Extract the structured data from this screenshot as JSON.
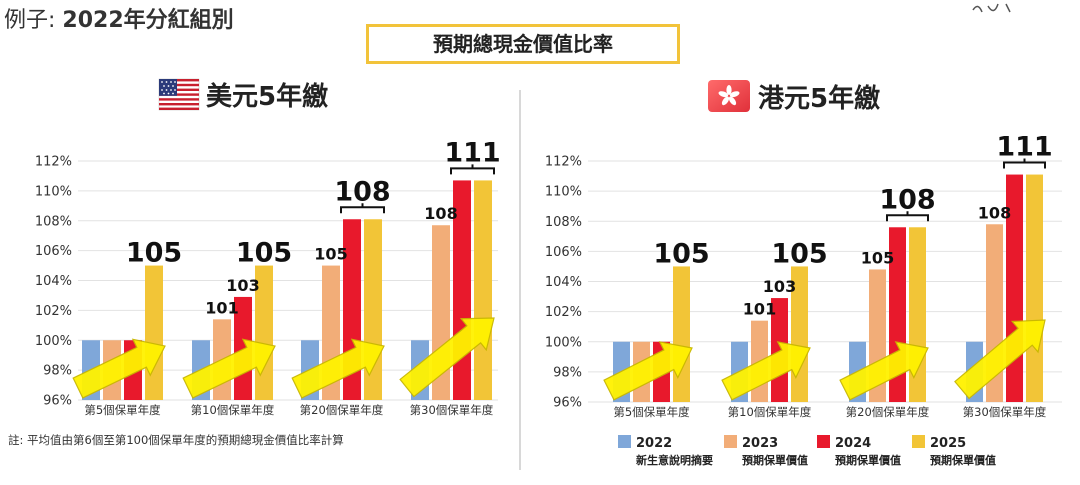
{
  "heading": {
    "prefix": "例子:",
    "main": "2022年分紅組別"
  },
  "center_title": "預期總現金價值比率",
  "note": "註: 平均值由第6個至第100個保單年度的預期總現金價值比率計算",
  "legend": [
    {
      "year": "2022",
      "desc": "新生意說明摘要",
      "color": "#7fa7d9"
    },
    {
      "year": "2023",
      "desc": "預期保單價值",
      "color": "#f2ad78"
    },
    {
      "year": "2024",
      "desc": "預期保單價值",
      "color": "#e8192c"
    },
    {
      "year": "2025",
      "desc": "預期保單價值",
      "color": "#f2c537"
    }
  ],
  "chart_data": [
    {
      "type": "bar",
      "title": "美元5年繳",
      "categories": [
        "第5個保單年度",
        "第10個保單年度",
        "第20個保單年度",
        "第30個保單年度"
      ],
      "yticks": [
        "96%",
        "98%",
        "100%",
        "102%",
        "104%",
        "106%",
        "108%",
        "110%",
        "112%"
      ],
      "ylim": [
        96,
        112
      ],
      "series": [
        {
          "name": "2022",
          "values": [
            100,
            100,
            100,
            100
          ]
        },
        {
          "name": "2023",
          "values": [
            100,
            101.4,
            105,
            107.7
          ]
        },
        {
          "name": "2024",
          "values": [
            100,
            102.9,
            108.1,
            110.7
          ]
        },
        {
          "name": "2025",
          "values": [
            105,
            105,
            108.1,
            110.7
          ]
        }
      ],
      "labels": [
        {
          "text": "105",
          "cat": 0,
          "bar": 3,
          "size": "big"
        },
        {
          "text": "101",
          "cat": 1,
          "bar": 1,
          "size": "small"
        },
        {
          "text": "103",
          "cat": 1,
          "bar": 2,
          "size": "small"
        },
        {
          "text": "105",
          "cat": 1,
          "bar": 3,
          "size": "big"
        },
        {
          "text": "105",
          "cat": 2,
          "bar": 1,
          "size": "small"
        },
        {
          "text": "108",
          "cat": 2,
          "bar": 2.5,
          "size": "big",
          "brace": true
        },
        {
          "text": "108",
          "cat": 3,
          "bar": 1,
          "size": "small"
        },
        {
          "text": "111",
          "cat": 3,
          "bar": 2.5,
          "size": "big",
          "brace": true
        }
      ]
    },
    {
      "type": "bar",
      "title": "港元5年繳",
      "categories": [
        "第5個保單年度",
        "第10個保單年度",
        "第20個保單年度",
        "第30個保單年度"
      ],
      "yticks": [
        "96%",
        "98%",
        "100%",
        "102%",
        "104%",
        "106%",
        "108%",
        "110%",
        "112%"
      ],
      "ylim": [
        96,
        112
      ],
      "series": [
        {
          "name": "2022",
          "values": [
            100,
            100,
            100,
            100
          ]
        },
        {
          "name": "2023",
          "values": [
            100,
            101.4,
            104.8,
            107.8
          ]
        },
        {
          "name": "2024",
          "values": [
            100,
            102.9,
            107.6,
            111.1
          ]
        },
        {
          "name": "2025",
          "values": [
            105,
            105,
            107.6,
            111.1
          ]
        }
      ],
      "labels": [
        {
          "text": "105",
          "cat": 0,
          "bar": 3,
          "size": "big"
        },
        {
          "text": "101",
          "cat": 1,
          "bar": 1,
          "size": "small"
        },
        {
          "text": "103",
          "cat": 1,
          "bar": 2,
          "size": "small"
        },
        {
          "text": "105",
          "cat": 1,
          "bar": 3,
          "size": "big"
        },
        {
          "text": "105",
          "cat": 2,
          "bar": 1,
          "size": "small"
        },
        {
          "text": "108",
          "cat": 2,
          "bar": 2.5,
          "size": "big",
          "brace": true
        },
        {
          "text": "108",
          "cat": 3,
          "bar": 1,
          "size": "small"
        },
        {
          "text": "111",
          "cat": 3,
          "bar": 2.5,
          "size": "big",
          "brace": true
        }
      ]
    }
  ]
}
